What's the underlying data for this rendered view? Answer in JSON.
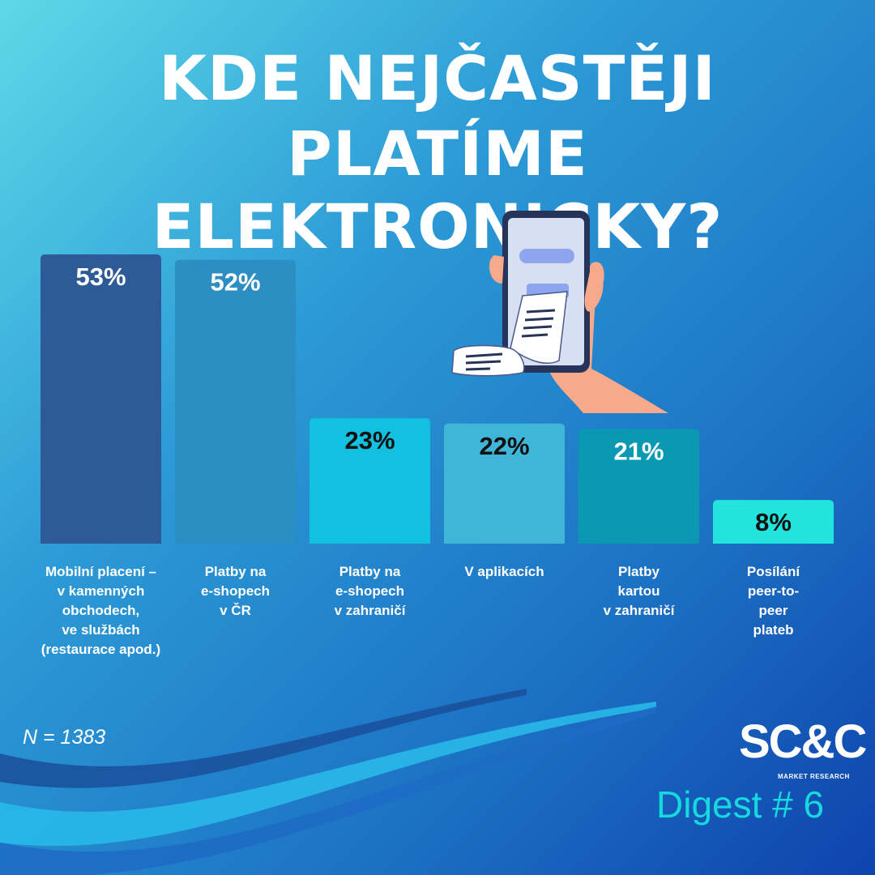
{
  "title": {
    "line1": "KDE NEJČASTĚJI",
    "line2": "PLATÍME ELEKTRONICKY?"
  },
  "chart_data": {
    "type": "bar",
    "categories": [
      "Mobilní placení –\nv kamenných\nobchodech,\nve službách\n(restaurace apod.)",
      "Platby na\ne-shopech\nv ČR",
      "Platby na\ne-shopech\nv zahraničí",
      "V aplikacích",
      "Platby\nkartou\nv zahraničí",
      "Posílání\npeer-to-\npeer\nplateb"
    ],
    "values": [
      53,
      52,
      23,
      22,
      21,
      8
    ],
    "value_labels": [
      "53%",
      "52%",
      "23%",
      "22%",
      "21%",
      "8%"
    ],
    "bar_colors": [
      "#2e5a98",
      "#2d8ec4",
      "#12c0e0",
      "#3fb6d8",
      "#0a98b3",
      "#22e4dc"
    ],
    "label_colors": [
      "#ffffff",
      "#ffffff",
      "#111111",
      "#111111",
      "#ffffff",
      "#111111"
    ],
    "unit": "%",
    "title": "KDE NEJČASTĚJI PLATÍME ELEKTRONICKY?",
    "xlabel": "",
    "ylabel": "",
    "grid": false,
    "legend": "none"
  },
  "footnote": "N = 1383",
  "logo": {
    "brand": "SC&C",
    "tagline": "MARKET RESEARCH"
  },
  "digest": "Digest # 6",
  "icons": [
    "phone-payment-illustration",
    "receipt-icon",
    "hand-icon"
  ],
  "colors": {
    "bg_top_left": "#5fd6e8",
    "bg_mid": "#2a8fd4",
    "bg_bottom_right": "#1148b0",
    "digest": "#16d9e0"
  }
}
